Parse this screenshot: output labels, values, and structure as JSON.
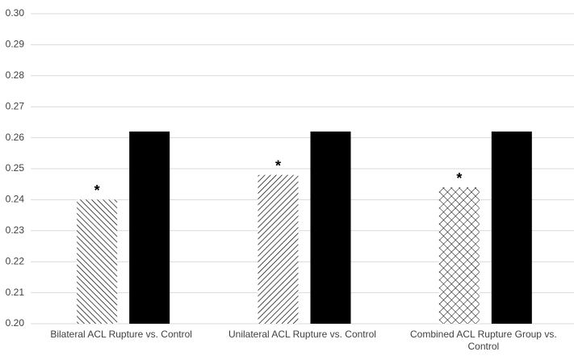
{
  "chart_data": {
    "type": "bar",
    "categories": [
      "Bilateral ACL Rupture vs. Control",
      "Unilateral ACL Rupture vs. Control",
      "Combined ACL Rupture Group vs. Control"
    ],
    "series": [
      {
        "color": "#000000",
        "values": [
          0.24,
          0.248,
          0.244
        ],
        "patterns": [
          "backslash",
          "slash",
          "cross"
        ],
        "annotations": [
          "*",
          "*",
          "*"
        ]
      },
      {
        "color": "#000000",
        "values": [
          0.262,
          0.262,
          0.262
        ]
      }
    ],
    "ylim": [
      0.2,
      0.3
    ],
    "yticks": [
      {
        "value": 0.2,
        "label": "0.20"
      },
      0.21,
      0.22,
      0.23,
      0.24,
      0.25,
      0.26,
      0.27,
      0.28,
      0.29,
      {
        "value": 0.3,
        "label": "0.30"
      }
    ],
    "grid": true
  }
}
